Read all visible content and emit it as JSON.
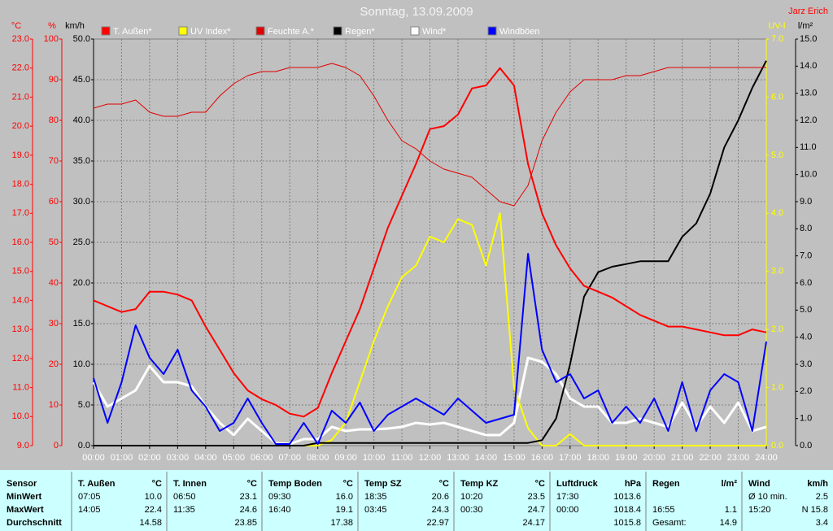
{
  "chart_data": {
    "type": "line",
    "title": "Sonntag, 13.09.2009",
    "annotations": [
      "Jarz Erich"
    ],
    "xlim": [
      0,
      24
    ],
    "xticks": [
      {
        "value": 0,
        "label": "00:00"
      },
      {
        "value": 1,
        "label": "01:00"
      },
      {
        "value": 2,
        "label": "02:00"
      },
      {
        "value": 3,
        "label": "03:00"
      },
      {
        "value": 4,
        "label": "04:00"
      },
      {
        "value": 5,
        "label": "05:00"
      },
      {
        "value": 6,
        "label": "06:00"
      },
      {
        "value": 7,
        "label": "07:00"
      },
      {
        "value": 8,
        "label": "08:00"
      },
      {
        "value": 9,
        "label": "09:00"
      },
      {
        "value": 10,
        "label": "10:00"
      },
      {
        "value": 11,
        "label": "11:00"
      },
      {
        "value": 12,
        "label": "12:00"
      },
      {
        "value": 13,
        "label": "13:00"
      },
      {
        "value": 14,
        "label": "14:00"
      },
      {
        "value": 15,
        "label": "15:00"
      },
      {
        "value": 16,
        "label": "16:00"
      },
      {
        "value": 17,
        "label": "17:00"
      },
      {
        "value": 18,
        "label": "18:00"
      },
      {
        "value": 19,
        "label": "19:00"
      },
      {
        "value": 20,
        "label": "20:00"
      },
      {
        "value": 21,
        "label": "21:00"
      },
      {
        "value": 22,
        "label": "22:00"
      },
      {
        "value": 23,
        "label": "23:00"
      },
      {
        "value": 24,
        "label": "24:00"
      }
    ],
    "axes": [
      {
        "label": "°C",
        "color": "#ff0000",
        "lim": [
          9,
          23
        ],
        "ticks": [
          {
            "value": 9,
            "label": "9.0"
          },
          {
            "value": 10,
            "label": "10.0"
          },
          {
            "value": 11,
            "label": "11.0"
          },
          {
            "value": 12,
            "label": "12.0"
          },
          {
            "value": 13,
            "label": "13.0"
          },
          {
            "value": 14,
            "label": "14.0"
          },
          {
            "value": 15,
            "label": "15.0"
          },
          {
            "value": 16,
            "label": "16.0"
          },
          {
            "value": 17,
            "label": "17.0"
          },
          {
            "value": 18,
            "label": "18.0"
          },
          {
            "value": 19,
            "label": "19.0"
          },
          {
            "value": 20,
            "label": "20.0"
          },
          {
            "value": 21,
            "label": "21.0"
          },
          {
            "value": 22,
            "label": "22.0"
          },
          {
            "value": 23,
            "label": "23.0"
          }
        ]
      },
      {
        "label": "%",
        "color": "#ff0000",
        "lim": [
          0,
          100
        ],
        "ticks": [
          0,
          10,
          20,
          30,
          40,
          50,
          60,
          70,
          80,
          90,
          100
        ]
      },
      {
        "label": "km/h",
        "color": "#000000",
        "lim": [
          0,
          50
        ],
        "grid": true,
        "ticks": [
          {
            "value": 0,
            "label": "0.0"
          },
          {
            "value": 5,
            "label": "5.0"
          },
          {
            "value": 10,
            "label": "10.0"
          },
          {
            "value": 15,
            "label": "15.0"
          },
          {
            "value": 20,
            "label": "20.0"
          },
          {
            "value": 25,
            "label": "25.0"
          },
          {
            "value": 30,
            "label": "30.0"
          },
          {
            "value": 35,
            "label": "35.0"
          },
          {
            "value": 40,
            "label": "40.0"
          },
          {
            "value": 45,
            "label": "45.0"
          },
          {
            "value": 50,
            "label": "50.0"
          }
        ]
      },
      {
        "label": "UV-I",
        "color": "#ffff00",
        "lim": [
          0,
          7
        ],
        "ticks": [
          {
            "value": 0,
            "label": "0.0"
          },
          {
            "value": 1,
            "label": "1.0"
          },
          {
            "value": 2,
            "label": "2.0"
          },
          {
            "value": 3,
            "label": "3.0"
          },
          {
            "value": 4,
            "label": "4.0"
          },
          {
            "value": 5,
            "label": "5.0"
          },
          {
            "value": 6,
            "label": "6.0"
          },
          {
            "value": 7,
            "label": "7.0"
          }
        ]
      },
      {
        "label": "l/m²",
        "color": "#000000",
        "lim": [
          0,
          15
        ],
        "ticks": [
          {
            "value": 0,
            "label": "0.0"
          },
          {
            "value": 1,
            "label": "1.0"
          },
          {
            "value": 2,
            "label": "2.0"
          },
          {
            "value": 3,
            "label": "3.0"
          },
          {
            "value": 4,
            "label": "4.0"
          },
          {
            "value": 5,
            "label": "5.0"
          },
          {
            "value": 6,
            "label": "6.0"
          },
          {
            "value": 7,
            "label": "7.0"
          },
          {
            "value": 8,
            "label": "8.0"
          },
          {
            "value": 9,
            "label": "9.0"
          },
          {
            "value": 10,
            "label": "10.0"
          },
          {
            "value": 11,
            "label": "11.0"
          },
          {
            "value": 12,
            "label": "12.0"
          },
          {
            "value": 13,
            "label": "13.0"
          },
          {
            "value": 14,
            "label": "14.0"
          },
          {
            "value": 15,
            "label": "15.0"
          }
        ]
      }
    ],
    "x": [
      0,
      0.5,
      1,
      1.5,
      2,
      2.5,
      3,
      3.5,
      4,
      4.5,
      5,
      5.5,
      6,
      6.5,
      7,
      7.5,
      8,
      8.5,
      9,
      9.5,
      10,
      10.5,
      11,
      11.5,
      12,
      12.5,
      13,
      13.5,
      14,
      14.5,
      15,
      15.5,
      16,
      16.5,
      17,
      17.5,
      18,
      18.5,
      19,
      19.5,
      20,
      20.5,
      21,
      21.5,
      22,
      22.5,
      23,
      23.5,
      24
    ],
    "series": [
      {
        "name": "T. Außen*",
        "color": "#ff0000",
        "axis": "°C",
        "values": [
          14.0,
          13.8,
          13.6,
          13.7,
          14.3,
          14.3,
          14.2,
          14.0,
          13.1,
          12.3,
          11.5,
          10.9,
          10.6,
          10.4,
          10.1,
          10.0,
          10.3,
          11.5,
          12.6,
          13.7,
          15.1,
          16.5,
          17.6,
          18.7,
          19.9,
          20.0,
          20.4,
          21.3,
          21.4,
          22.0,
          21.4,
          18.7,
          17.0,
          15.9,
          15.1,
          14.5,
          14.3,
          14.1,
          13.8,
          13.5,
          13.3,
          13.1,
          13.1,
          13.0,
          12.9,
          12.8,
          12.8,
          13.0,
          12.9
        ]
      },
      {
        "name": "UV Index*",
        "color": "#ffff00",
        "axis": "UV-I",
        "values": [
          0,
          0,
          0,
          0,
          0,
          0,
          0,
          0,
          0,
          0,
          0,
          0,
          0,
          0,
          0,
          0,
          0,
          0.1,
          0.4,
          1.1,
          1.8,
          2.4,
          2.9,
          3.1,
          3.6,
          3.5,
          3.9,
          3.8,
          3.1,
          4.0,
          1.0,
          0.3,
          0,
          0,
          0.2,
          0,
          0,
          0,
          0,
          0,
          0,
          0,
          0,
          0,
          0,
          0,
          0,
          0,
          0
        ]
      },
      {
        "name": "Feuchte A.*",
        "color": "#e00000",
        "axis": "%",
        "values": [
          83,
          84,
          84,
          85,
          82,
          81,
          81,
          82,
          82,
          86,
          89,
          91,
          92,
          92,
          93,
          93,
          93,
          94,
          93,
          91,
          86,
          80,
          75,
          73,
          70,
          68,
          67,
          66,
          63,
          60,
          59,
          64,
          75,
          82,
          87,
          90,
          90,
          90,
          91,
          91,
          92,
          93,
          93,
          93,
          93,
          93,
          93,
          93,
          93
        ]
      },
      {
        "name": "Regen*",
        "color": "#000000",
        "axis": "l/m²",
        "values": [
          0,
          0,
          0,
          0,
          0,
          0,
          0,
          0,
          0,
          0,
          0,
          0,
          0,
          0,
          0,
          0,
          0.1,
          0.1,
          0.1,
          0.1,
          0.1,
          0.1,
          0.1,
          0.1,
          0.1,
          0.1,
          0.1,
          0.1,
          0.1,
          0.1,
          0.1,
          0.1,
          0.2,
          1.0,
          3.0,
          5.5,
          6.4,
          6.6,
          6.7,
          6.8,
          6.8,
          6.8,
          7.7,
          8.2,
          9.3,
          11.0,
          12.0,
          13.2,
          14.2
        ]
      },
      {
        "name": "Wind*",
        "color": "#ffffff",
        "axis": "km/h",
        "values": [
          7.8,
          4.8,
          5.8,
          6.8,
          9.8,
          7.8,
          7.8,
          7.3,
          4.8,
          2.8,
          1.3,
          3.3,
          1.8,
          0.3,
          0.2,
          0.8,
          0.8,
          2.3,
          1.8,
          2.0,
          2.0,
          2.1,
          2.3,
          2.8,
          2.6,
          2.8,
          2.3,
          1.8,
          1.3,
          1.3,
          2.8,
          10.8,
          10.3,
          8.8,
          5.8,
          4.8,
          4.8,
          2.8,
          2.8,
          3.3,
          2.8,
          2.3,
          5.3,
          2.3,
          4.8,
          2.8,
          5.3,
          1.8,
          2.3
        ]
      },
      {
        "name": "Windböen",
        "color": "#0000ff",
        "axis": "km/h",
        "values": [
          8.3,
          2.8,
          7.8,
          14.8,
          10.8,
          8.8,
          11.8,
          6.8,
          4.8,
          1.8,
          2.8,
          5.8,
          2.8,
          0.2,
          0.2,
          2.8,
          0.2,
          4.3,
          2.8,
          5.3,
          1.8,
          3.8,
          4.8,
          5.8,
          4.8,
          3.8,
          5.8,
          4.3,
          2.8,
          3.3,
          3.8,
          23.6,
          11.8,
          7.8,
          8.8,
          5.8,
          6.8,
          2.8,
          4.8,
          2.8,
          5.8,
          1.8,
          7.8,
          1.8,
          6.8,
          8.8,
          7.8,
          1.8,
          12.8
        ]
      }
    ]
  },
  "table": {
    "columns": [
      {
        "name": "Sensor"
      },
      {
        "name": "T. Außen",
        "unit": "°C"
      },
      {
        "name": "T. Innen",
        "unit": "°C"
      },
      {
        "name": "Temp Boden",
        "unit": "°C"
      },
      {
        "name": "Temp SZ",
        "unit": "°C"
      },
      {
        "name": "Temp KZ",
        "unit": "°C"
      },
      {
        "name": "Luftdruck",
        "unit": "hPa"
      },
      {
        "name": "Regen",
        "unit": "l/m²"
      },
      {
        "name": "Wind",
        "unit": "km/h"
      }
    ],
    "rows": [
      {
        "label": "MinWert",
        "cells": [
          [
            "07:05",
            "10.0"
          ],
          [
            "06:50",
            "23.1"
          ],
          [
            "09:30",
            "16.0"
          ],
          [
            "18:35",
            "20.6"
          ],
          [
            "10:20",
            "23.5"
          ],
          [
            "17:30",
            "1013.6"
          ],
          [],
          [
            "Ø 10 min.",
            "2.5"
          ]
        ]
      },
      {
        "label": "MaxWert",
        "cells": [
          [
            "14:05",
            "22.4"
          ],
          [
            "11:35",
            "24.6"
          ],
          [
            "16:40",
            "19.1"
          ],
          [
            "03:45",
            "24.3"
          ],
          [
            "00:30",
            "24.7"
          ],
          [
            "00:00",
            "1018.4"
          ],
          [
            "16:55",
            "1.1"
          ],
          [
            "15:20",
            "N 15.8"
          ]
        ]
      },
      {
        "label": "Durchschnitt",
        "cells": [
          [
            "14.58"
          ],
          [
            "23.85"
          ],
          [
            "17.38"
          ],
          [
            "22.97"
          ],
          [
            "24.17"
          ],
          [
            "1015.8"
          ],
          [
            "Gesamt:",
            "14.9"
          ],
          [
            "3.4"
          ]
        ]
      }
    ]
  }
}
